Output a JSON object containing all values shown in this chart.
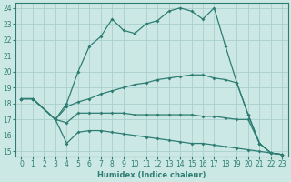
{
  "xlabel": "Humidex (Indice chaleur)",
  "bg_color": "#cce8e5",
  "line_color": "#2e7d72",
  "grid_color": "#aacfcc",
  "xlim": [
    -0.5,
    23.5
  ],
  "ylim": [
    14.7,
    24.3
  ],
  "yticks": [
    15,
    16,
    17,
    18,
    19,
    20,
    21,
    22,
    23,
    24
  ],
  "xticks": [
    0,
    1,
    2,
    3,
    4,
    5,
    6,
    7,
    8,
    9,
    10,
    11,
    12,
    13,
    14,
    15,
    16,
    17,
    18,
    19,
    20,
    21,
    22,
    23
  ],
  "lines": [
    {
      "x": [
        0,
        1,
        3,
        4,
        5,
        6,
        7,
        8,
        9,
        10,
        11,
        12,
        13,
        14,
        15,
        16,
        17,
        18,
        19,
        20,
        21,
        22,
        23
      ],
      "y": [
        18.3,
        18.3,
        17.0,
        18.0,
        20.0,
        21.6,
        22.2,
        23.3,
        22.6,
        22.4,
        23.0,
        23.2,
        23.8,
        24.0,
        23.8,
        23.3,
        24.0,
        21.6,
        19.3,
        17.3,
        15.5,
        14.9,
        14.8
      ]
    },
    {
      "x": [
        0,
        1,
        3,
        4,
        5,
        6,
        7,
        8,
        9,
        10,
        11,
        12,
        13,
        14,
        15,
        16,
        17,
        18,
        19,
        20,
        21,
        22,
        23
      ],
      "y": [
        18.3,
        18.3,
        17.0,
        17.8,
        18.1,
        18.3,
        18.6,
        18.8,
        19.0,
        19.2,
        19.3,
        19.5,
        19.6,
        19.7,
        19.8,
        19.8,
        19.6,
        19.5,
        19.3,
        17.3,
        15.5,
        14.9,
        14.8
      ]
    },
    {
      "x": [
        0,
        1,
        3,
        4,
        5,
        6,
        7,
        8,
        9,
        10,
        11,
        12,
        13,
        14,
        15,
        16,
        17,
        18,
        19,
        20,
        21,
        22,
        23
      ],
      "y": [
        18.3,
        18.3,
        17.0,
        16.8,
        17.4,
        17.4,
        17.4,
        17.4,
        17.4,
        17.3,
        17.3,
        17.3,
        17.3,
        17.3,
        17.3,
        17.2,
        17.2,
        17.1,
        17.0,
        17.0,
        15.5,
        14.9,
        14.8
      ]
    },
    {
      "x": [
        0,
        1,
        3,
        4,
        5,
        6,
        7,
        8,
        9,
        10,
        11,
        12,
        13,
        14,
        15,
        16,
        17,
        18,
        19,
        20,
        21,
        22,
        23
      ],
      "y": [
        18.3,
        18.3,
        17.0,
        15.5,
        16.2,
        16.3,
        16.3,
        16.2,
        16.1,
        16.0,
        15.9,
        15.8,
        15.7,
        15.6,
        15.5,
        15.5,
        15.4,
        15.3,
        15.2,
        15.1,
        15.0,
        14.9,
        14.8
      ]
    }
  ]
}
